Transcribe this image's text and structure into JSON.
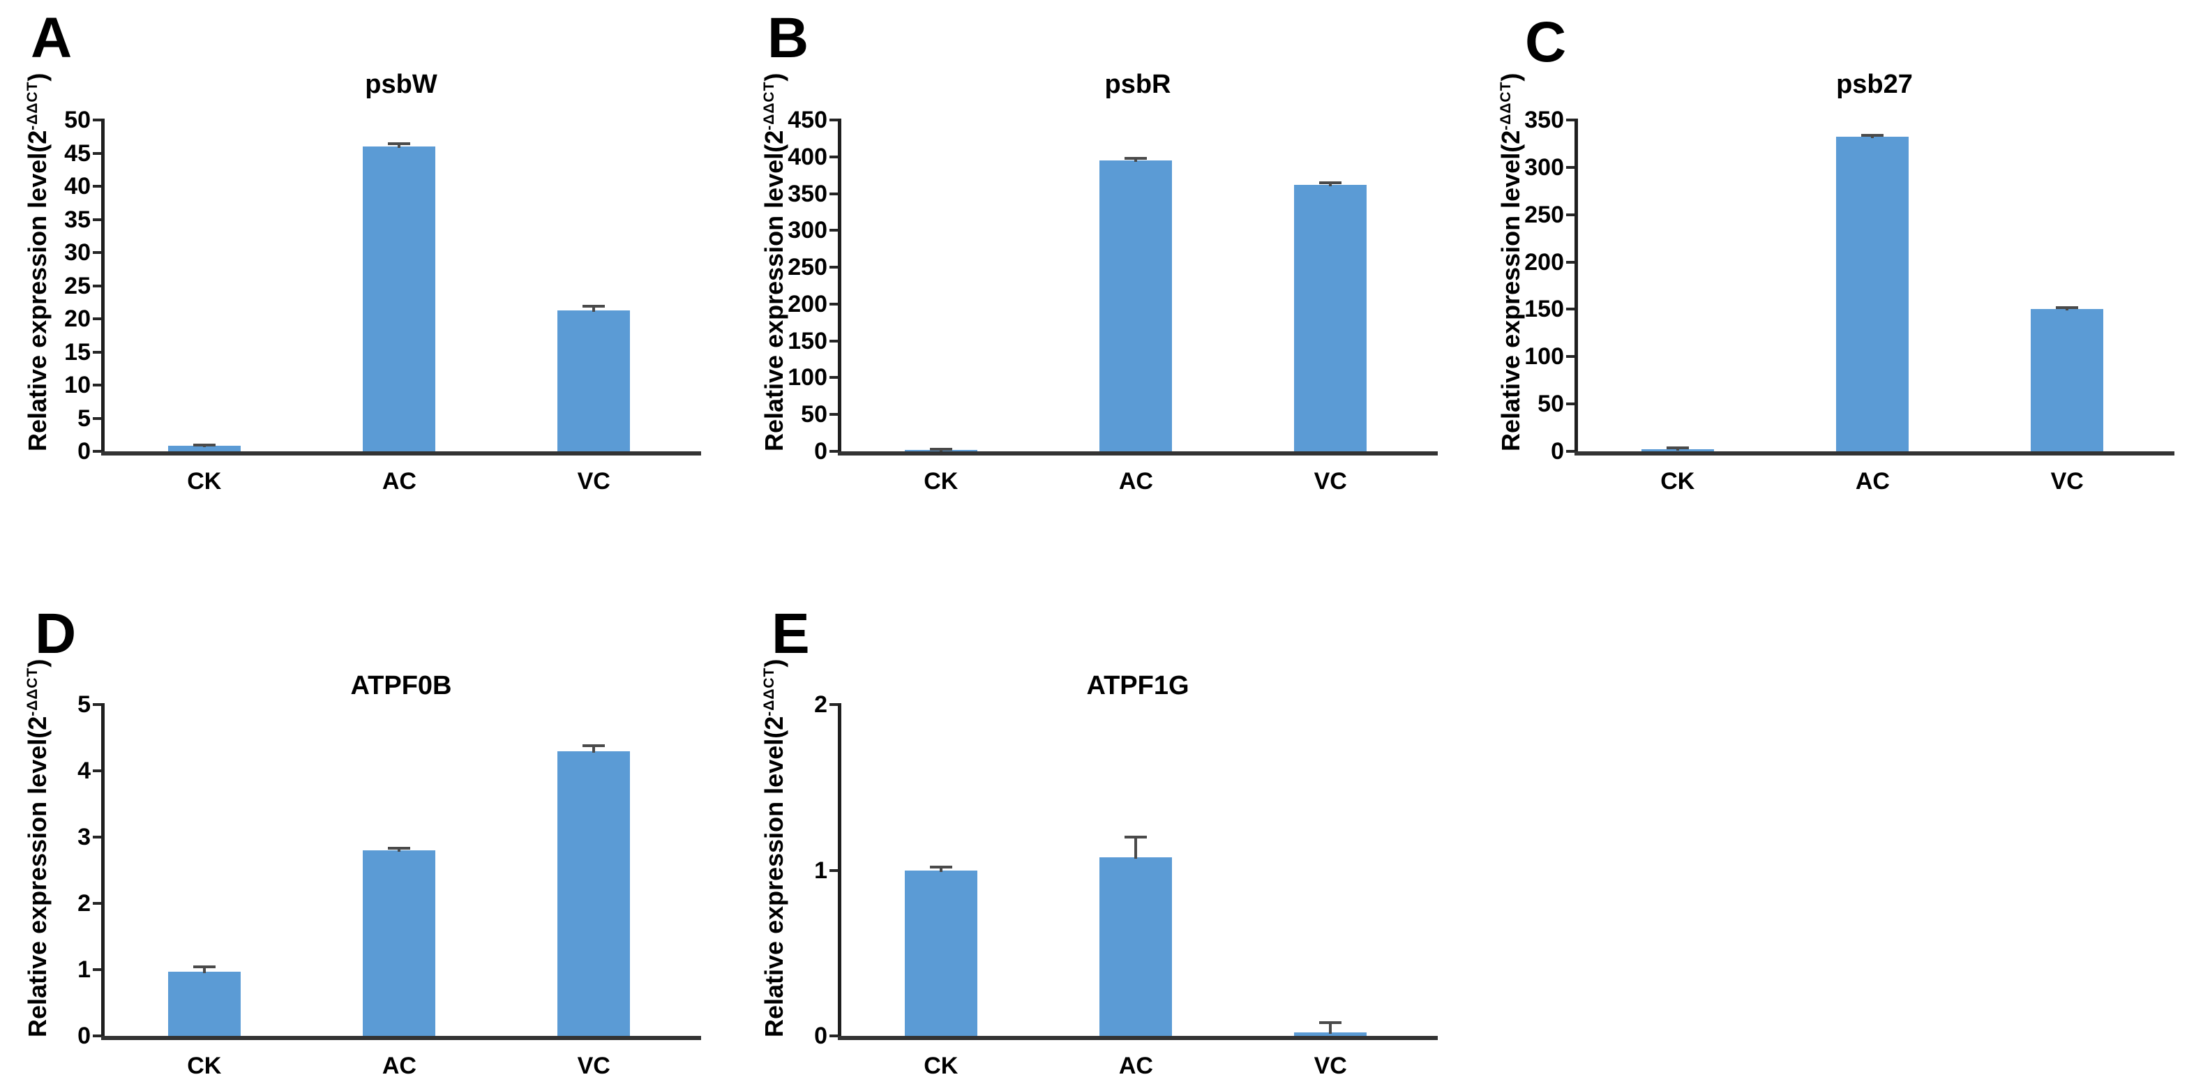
{
  "figure": {
    "background": "#ffffff",
    "panel_letters": [
      "A",
      "B",
      "C",
      "D",
      "E"
    ]
  },
  "ylabel": {
    "prefix": "Relative expression level(2",
    "sup": "-ΔΔCT",
    "suffix": ")",
    "full": "Relative expression level(2-ΔΔCT)"
  },
  "categories": [
    "CK",
    "AC",
    "VC"
  ],
  "colors": {
    "bar": "#5B9BD5",
    "error": "#4a4a4a",
    "axis": "#262626",
    "text": "#000000"
  },
  "chart_data": [
    {
      "type": "bar",
      "panel": "A",
      "title": "psbW",
      "categories": [
        "CK",
        "AC",
        "VC"
      ],
      "values": [
        0.8,
        46,
        21.3
      ],
      "errors": [
        0.2,
        0.4,
        0.6
      ],
      "ylabel": "Relative expression level(2-ΔΔCT)",
      "xlabel": "",
      "ylim": [
        0,
        50
      ],
      "ytick_step": 5,
      "yticks": [
        0,
        5,
        10,
        15,
        20,
        25,
        30,
        35,
        40,
        45,
        50
      ],
      "grid": false,
      "legend": "none"
    },
    {
      "type": "bar",
      "panel": "B",
      "title": "psbR",
      "categories": [
        "CK",
        "AC",
        "VC"
      ],
      "values": [
        2,
        395,
        362
      ],
      "errors": [
        1,
        3,
        2.5
      ],
      "ylabel": "Relative expression level(2-ΔΔCT)",
      "xlabel": "",
      "ylim": [
        0,
        450
      ],
      "ytick_step": 50,
      "yticks": [
        0,
        50,
        100,
        150,
        200,
        250,
        300,
        350,
        400,
        450
      ],
      "grid": false,
      "legend": "none"
    },
    {
      "type": "bar",
      "panel": "C",
      "title": "psb27",
      "categories": [
        "CK",
        "AC",
        "VC"
      ],
      "values": [
        2.5,
        332,
        150
      ],
      "errors": [
        1.5,
        2,
        2
      ],
      "ylabel": "Relative expression level(2-ΔΔCT)",
      "xlabel": "",
      "ylim": [
        0,
        350
      ],
      "ytick_step": 50,
      "yticks": [
        0,
        50,
        100,
        150,
        200,
        250,
        300,
        350
      ],
      "grid": false,
      "legend": "none"
    },
    {
      "type": "bar",
      "panel": "D",
      "title": "ATPF0B",
      "categories": [
        "CK",
        "AC",
        "VC"
      ],
      "values": [
        0.97,
        2.8,
        4.3
      ],
      "errors": [
        0.07,
        0.03,
        0.08
      ],
      "ylabel": "Relative expression level(2-ΔΔCT)",
      "xlabel": "",
      "ylim": [
        0,
        5
      ],
      "ytick_step": 1,
      "yticks": [
        0,
        1,
        2,
        3,
        4,
        5
      ],
      "grid": false,
      "legend": "none"
    },
    {
      "type": "bar",
      "panel": "E",
      "title": "ATPF1G",
      "categories": [
        "CK",
        "AC",
        "VC"
      ],
      "values": [
        1.0,
        1.08,
        0.02
      ],
      "errors": [
        0.02,
        0.12,
        0.06
      ],
      "ylabel": "Relative expression level(2-ΔΔCT)",
      "xlabel": "",
      "ylim": [
        0,
        2
      ],
      "ytick_step": 1,
      "yticks": [
        0,
        1,
        2
      ],
      "grid": false,
      "legend": "none"
    }
  ]
}
